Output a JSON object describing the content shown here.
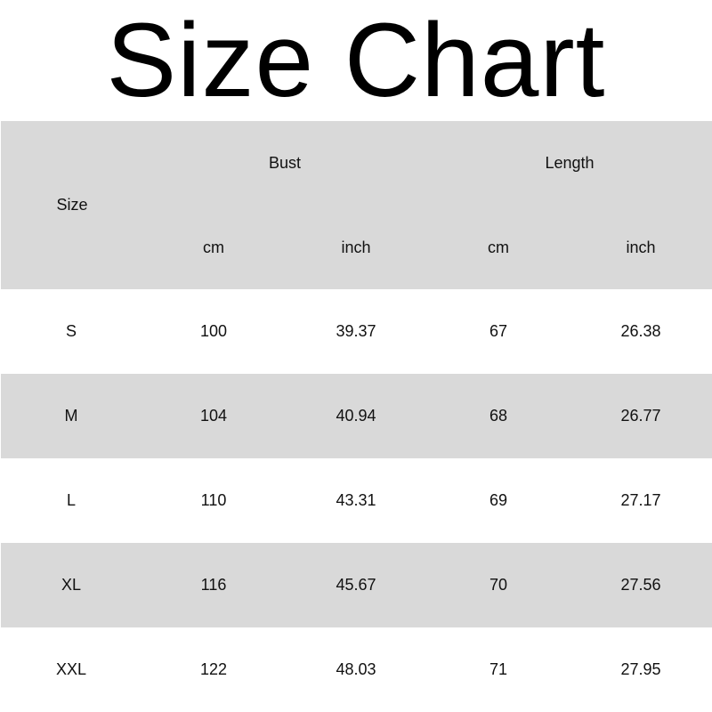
{
  "title": "Size Chart",
  "header": {
    "size": "Size",
    "bust": "Bust",
    "length": "Length",
    "units": [
      "cm",
      "inch",
      "cm",
      "inch"
    ]
  },
  "rows": [
    [
      "S",
      "100",
      "39.37",
      "67",
      "26.38"
    ],
    [
      "M",
      "104",
      "40.94",
      "68",
      "26.77"
    ],
    [
      "L",
      "110",
      "43.31",
      "69",
      "27.17"
    ],
    [
      "XL",
      "116",
      "45.67",
      "70",
      "27.56"
    ],
    [
      "XXL",
      "122",
      "48.03",
      "71",
      "27.95"
    ]
  ],
  "colors": {
    "shade": "#d9d9d9",
    "background": "#ffffff"
  }
}
